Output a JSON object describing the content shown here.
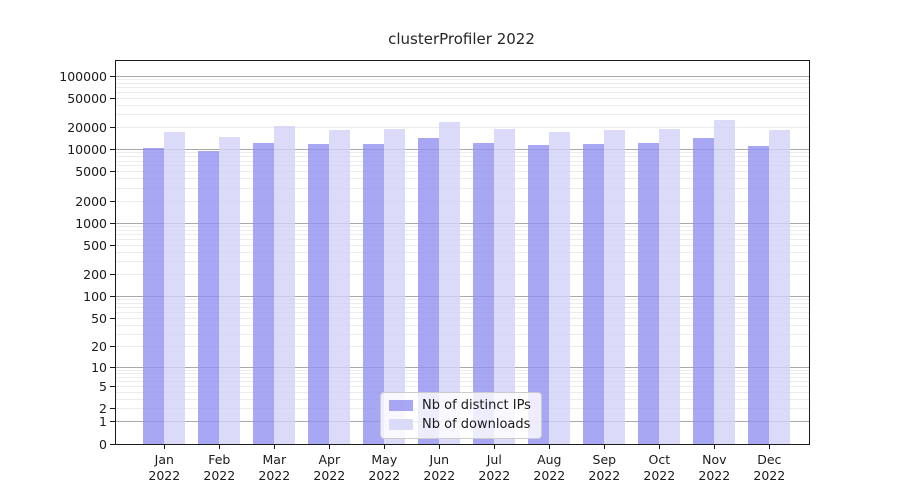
{
  "title": "clusterProfiler 2022",
  "legend": {
    "items": [
      {
        "label": "Nb of distinct IPs",
        "color": "#9191f0"
      },
      {
        "label": "Nb of downloads",
        "color": "#d2d2f8"
      }
    ]
  },
  "chart_data": {
    "type": "bar",
    "title": "clusterProfiler 2022",
    "scale": "log1p",
    "grid": true,
    "legend_position": "lower-center",
    "year": "2022",
    "categories": [
      "Jan",
      "Feb",
      "Mar",
      "Apr",
      "May",
      "Jun",
      "Jul",
      "Aug",
      "Sep",
      "Oct",
      "Nov",
      "Dec"
    ],
    "series": [
      {
        "name": "Nb of distinct IPs",
        "color": "#9191f0",
        "values": [
          10600,
          9600,
          12400,
          11800,
          12000,
          14400,
          12200,
          11400,
          12000,
          12300,
          14300,
          11300
        ]
      },
      {
        "name": "Nb of downloads",
        "color": "#d2d2f8",
        "values": [
          17400,
          15000,
          21000,
          18400,
          18900,
          24000,
          18900,
          17300,
          18200,
          19300,
          25300,
          18300
        ]
      }
    ],
    "yticks": [
      100000,
      50000,
      20000,
      10000,
      5000,
      2000,
      1000,
      500,
      200,
      100,
      50,
      20,
      10,
      5,
      2,
      1,
      0
    ],
    "ylim": [
      0,
      160000
    ],
    "xlabel": "",
    "ylabel": ""
  }
}
